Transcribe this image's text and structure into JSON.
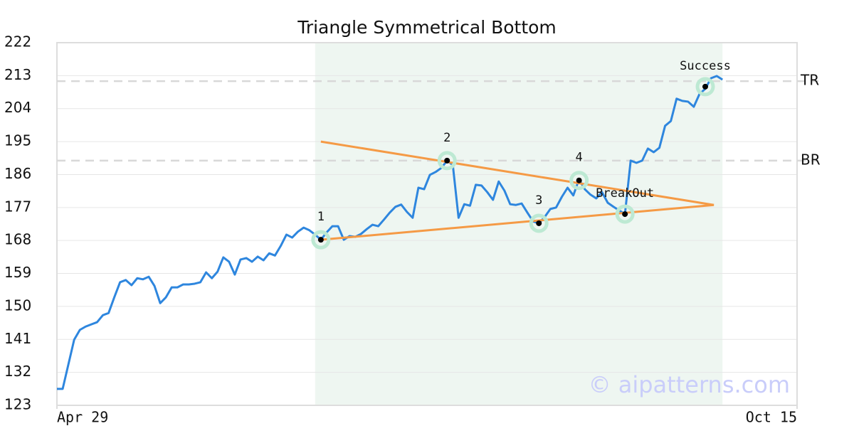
{
  "chart_data": {
    "type": "line",
    "title": "Triangle Symmetrical Bottom",
    "watermark": "© aipatterns.com",
    "xlim": [
      0,
      129
    ],
    "xticks": [
      {
        "value": 0,
        "label": "Apr 29"
      },
      {
        "value": 129,
        "label": "Oct 15"
      }
    ],
    "ylim": [
      123,
      222
    ],
    "yticks": [
      123,
      132,
      141,
      150,
      159,
      168,
      177,
      186,
      195,
      204,
      213,
      222
    ],
    "grid": true,
    "shaded_region": [
      45,
      116
    ],
    "shade_color": "#eef6f1",
    "series": [
      {
        "name": "Price",
        "color": "#2e86de",
        "x": [
          0,
          1,
          2,
          3,
          4,
          5,
          6,
          7,
          8,
          9,
          10,
          11,
          12,
          13,
          14,
          15,
          16,
          17,
          18,
          19,
          20,
          21,
          22,
          23,
          24,
          25,
          26,
          27,
          28,
          29,
          30,
          31,
          32,
          33,
          34,
          35,
          36,
          37,
          38,
          39,
          40,
          41,
          42,
          43,
          44,
          45,
          46,
          47,
          48,
          49,
          50,
          51,
          52,
          53,
          54,
          55,
          56,
          57,
          58,
          59,
          60,
          61,
          62,
          63,
          64,
          65,
          66,
          67,
          68,
          69,
          70,
          71,
          72,
          73,
          74,
          75,
          76,
          77,
          78,
          79,
          80,
          81,
          82,
          83,
          84,
          85,
          86,
          87,
          88,
          89,
          90,
          91,
          92,
          93,
          94,
          95,
          96,
          97,
          98,
          99,
          100,
          101,
          102,
          103,
          104,
          105,
          106,
          107,
          108,
          109,
          110,
          111,
          112,
          113,
          114,
          115,
          116
        ],
        "values": [
          127.5,
          127.5,
          134.2,
          140.9,
          143.6,
          144.5,
          145.1,
          145.7,
          147.6,
          148.2,
          152.5,
          156.6,
          157.2,
          155.8,
          157.7,
          157.4,
          158.1,
          155.6,
          150.9,
          152.5,
          155.2,
          155.2,
          156,
          156,
          156.2,
          156.6,
          159.3,
          157.7,
          159.5,
          163.4,
          162.2,
          158.7,
          162.8,
          163.2,
          162.2,
          163.6,
          162.6,
          164.5,
          163.9,
          166.5,
          169.6,
          168.8,
          170.4,
          171.5,
          170.8,
          169.6,
          168.2,
          170.2,
          171.9,
          171.9,
          168.2,
          169.2,
          169,
          169.8,
          171.1,
          172.3,
          171.9,
          173.7,
          175.6,
          177.2,
          177.8,
          175.8,
          174.2,
          182.4,
          182,
          185.9,
          186.7,
          187.8,
          189.8,
          188.6,
          174.2,
          177.9,
          177.5,
          183.2,
          183,
          181.2,
          179.1,
          184.1,
          181.6,
          177.9,
          177.7,
          178.1,
          175.6,
          173.2,
          172.7,
          174.4,
          176.6,
          177,
          179.9,
          182.4,
          180.3,
          184.7,
          182,
          180.5,
          179.5,
          181.2,
          178.3,
          177.2,
          176.2,
          175.2,
          189.8,
          189.2,
          189.8,
          193.1,
          192.1,
          193.3,
          199.3,
          200.6,
          206.7,
          206.1,
          205.9,
          204.5,
          208,
          209.4,
          212.3,
          212.9,
          211.9
        ]
      }
    ],
    "trendlines": [
      {
        "color": "#f59a45",
        "x": [
          46,
          114.5
        ],
        "values": [
          195,
          177.7
        ]
      },
      {
        "color": "#f59a45",
        "x": [
          46,
          114.5
        ],
        "values": [
          168.2,
          177.7
        ]
      }
    ],
    "levels": [
      {
        "label": "TR",
        "value": 211.5
      },
      {
        "label": "BR",
        "value": 189.8
      }
    ],
    "annotations": [
      {
        "label": "1",
        "x": 46,
        "y": 168.2
      },
      {
        "label": "2",
        "x": 68,
        "y": 189.8
      },
      {
        "label": "3",
        "x": 84,
        "y": 172.7
      },
      {
        "label": "4",
        "x": 91,
        "y": 184.4
      },
      {
        "label": "BreakOut",
        "x": 99,
        "y": 175.2
      },
      {
        "label": "Success",
        "x": 113,
        "y": 210
      }
    ]
  }
}
